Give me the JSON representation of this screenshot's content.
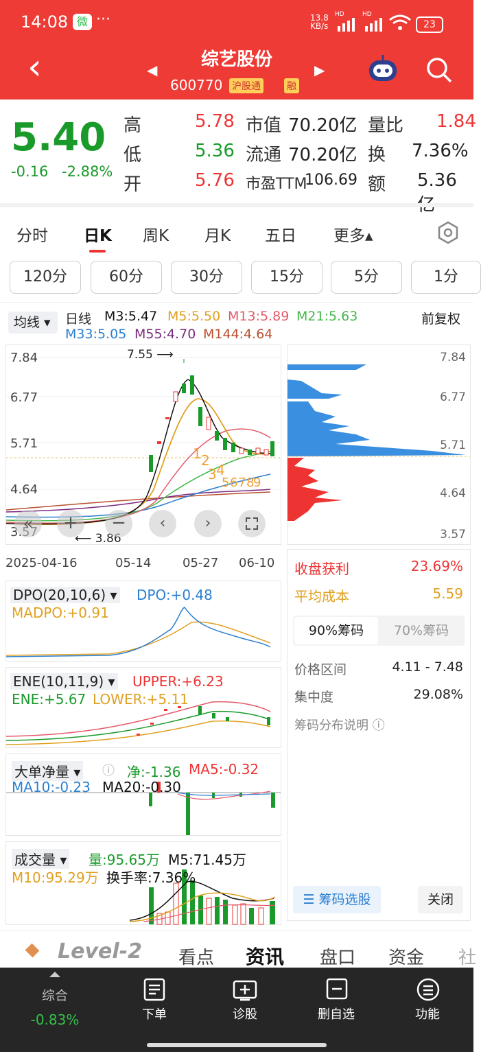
{
  "status_bar": {
    "time": "14:08",
    "wechat": "微",
    "dots": "···",
    "net_rate": "13.8",
    "net_unit": "KB/s",
    "hd1": "HD",
    "hd2": "HD",
    "battery": "23"
  },
  "header": {
    "back": "‹",
    "title": "综艺股份",
    "code": "600770",
    "badge1": "沪股通",
    "badge2": "融",
    "prev": "◀",
    "next": "▶"
  },
  "quote": {
    "price": "5.40",
    "change": "-0.16",
    "change_pct": "-2.88%",
    "high_label": "高",
    "high": "5.78",
    "low_label": "低",
    "low": "5.36",
    "open_label": "开",
    "open": "5.76",
    "mcap_label": "市值",
    "mcap": "70.20亿",
    "float_label": "流通",
    "float": "70.20亿",
    "pe_label": "市盈TTM",
    "pe": "106.69",
    "vr_label": "量比",
    "vr": "1.84",
    "turn_label": "换",
    "turn": "7.36%",
    "amt_label": "额",
    "amt": "5.36亿"
  },
  "tabs": [
    "分时",
    "日K",
    "周K",
    "月K",
    "五日",
    "更多▴"
  ],
  "periods": [
    "120分",
    "60分",
    "30分",
    "15分",
    "5分",
    "1分"
  ],
  "ma_header": {
    "selector": "均线",
    "line": "日线",
    "m3": "M3:5.47",
    "m5": "M5:5.50",
    "m13": "M13:5.89",
    "m21": "M21:5.63",
    "m33": "M33:5.05",
    "m55": "M55:4.70",
    "m144": "M144:4.64",
    "adjust": "前复权"
  },
  "kline": {
    "y_ticks": [
      "7.84",
      "6.77",
      "5.71",
      "4.64",
      "3.57"
    ],
    "r_ticks": [
      "7.84",
      "6.77",
      "5.71",
      "4.64",
      "3.57"
    ],
    "high_annot": "7.55",
    "low_annot": "3.86",
    "x_labels": [
      "2025-04-16",
      "05-14",
      "05-27",
      "06-10"
    ],
    "markers": [
      "1",
      "2",
      "3",
      "4",
      "5",
      "6",
      "7",
      "8",
      "9"
    ]
  },
  "chip": {
    "profit_label": "收盘获利",
    "profit": "23.69%",
    "avg_label": "平均成本",
    "avg": "5.59",
    "tab90": "90%筹码",
    "tab70": "70%筹码",
    "range_label": "价格区间",
    "range": "4.11 - 7.48",
    "conc_label": "集中度",
    "conc": "29.08%",
    "help": "筹码分布说明",
    "select_btn": "筹码选股",
    "close_btn": "关闭"
  },
  "indicators": {
    "dpo": {
      "name": "DPO(20,10,6)",
      "v1": "DPO:+0.48",
      "v2": "MADPO:+0.91"
    },
    "ene": {
      "name": "ENE(10,11,9)",
      "v1": "UPPER:+6.23",
      "v2": "ENE:+5.67",
      "v3": "LOWER:+5.11"
    },
    "big": {
      "name": "大单净量",
      "v1": "净:-1.36",
      "v2": "MA5:-0.32",
      "v3": "MA10:-0.23",
      "v4": "MA20:-0.30"
    },
    "vol": {
      "name": "成交量",
      "v1": "量:95.65万",
      "v2": "M5:71.45万",
      "v3": "M10:95.29万",
      "v4": "换手率:7.36%"
    }
  },
  "sub_tabs": [
    "Level-2",
    "看点",
    "资讯",
    "盘口",
    "资金",
    "社"
  ],
  "bottom_nav": [
    {
      "label": "综合",
      "sub": "-0.83%"
    },
    {
      "label": "下单"
    },
    {
      "label": "诊股"
    },
    {
      "label": "删自选"
    },
    {
      "label": "功能"
    }
  ],
  "colors": {
    "red": "#ee3b36",
    "up": "#e33333",
    "down": "#1a9a2a",
    "chip_blue": "#3b8fe0"
  }
}
